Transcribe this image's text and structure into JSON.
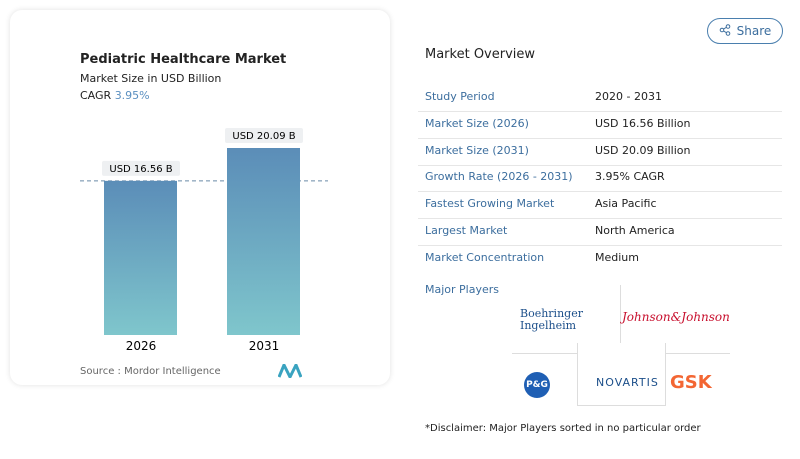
{
  "share": "Share",
  "chart_data": {
    "type": "bar",
    "title": "Pediatric Healthcare Market",
    "subtitle": "Market Size in USD Billion",
    "cagr_label": "CAGR",
    "cagr_value": "3.95%",
    "categories": [
      "2026",
      "2031"
    ],
    "values": [
      16.56,
      20.09
    ],
    "value_labels": [
      "USD 16.56 B",
      "USD 20.09 B"
    ],
    "colors": [
      "#5b8db8",
      "#7fc6cc"
    ],
    "source": "Source :  Mordor Intelligence"
  },
  "overview": {
    "title": "Market Overview",
    "rows": [
      [
        "Study Period",
        "2020 - 2031"
      ],
      [
        "Market Size (2026)",
        "USD 16.56 Billion"
      ],
      [
        "Market Size (2031)",
        "USD 20.09 Billion"
      ],
      [
        "Growth Rate (2026 - 2031)",
        "3.95% CAGR"
      ],
      [
        "Fastest Growing Market",
        "Asia Pacific"
      ],
      [
        "Largest Market",
        "North America"
      ],
      [
        "Market Concentration",
        "Medium"
      ]
    ]
  },
  "major_players": {
    "title": "Major Players",
    "logos": [
      "Boehringer Ingelheim",
      "Johnson&Johnson",
      "P&G",
      "NOVARTIS",
      "GSK"
    ]
  },
  "disclaimer": "*Disclaimer: Major Players sorted in no particular order"
}
